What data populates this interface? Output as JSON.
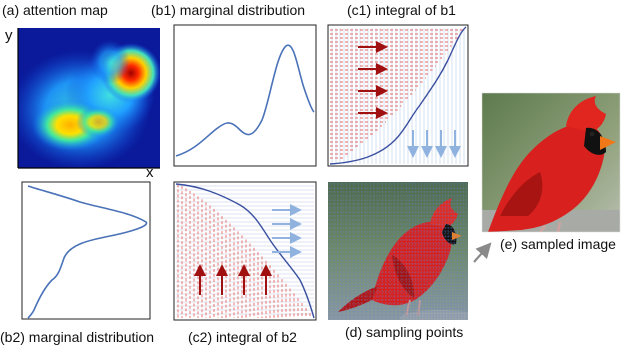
{
  "labels": {
    "a": "(a) attention map",
    "b1": "(b1) marginal distribution",
    "c1": "(c1) integral of b1",
    "b2": "(b2) marginal distribution",
    "c2": "(c2) integral of b2",
    "d": "(d) sampling points",
    "e": "(e) sampled image",
    "axis_x": "x",
    "axis_y": "y"
  },
  "colors": {
    "curve": "#4a72b8",
    "red_dash": "#e03a3a",
    "red_arrow": "#a01010",
    "blue_arrow": "#8fb3de",
    "light_line": "#b9cde6",
    "gray_arrow": "#8a8a8a",
    "bird_red": "#d8201e"
  },
  "icons": {
    "image_a": "attention-heatmap",
    "image_d": "cardinal-bird-with-sampling-grid",
    "image_e": "cardinal-bird-resampled"
  }
}
